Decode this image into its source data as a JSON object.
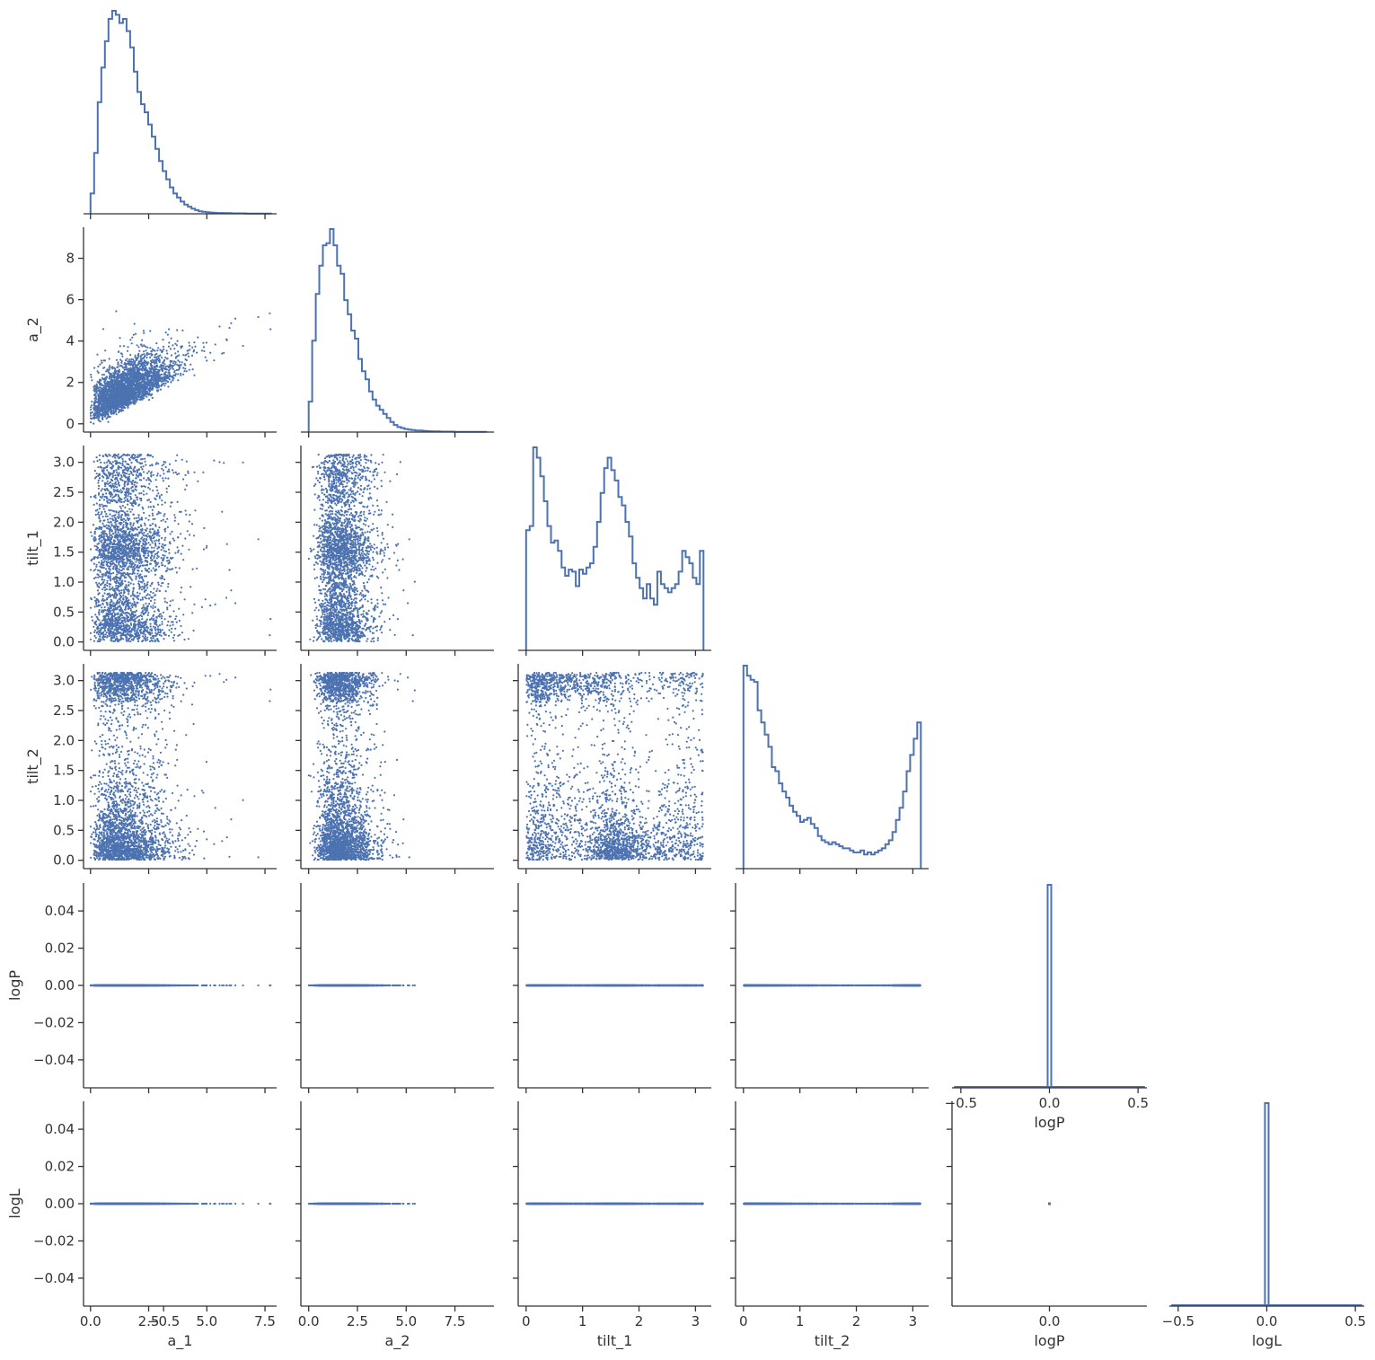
{
  "chart_data": {
    "type": "scatter",
    "variables": [
      "a_1",
      "a_2",
      "tilt_1",
      "tilt_2",
      "logP",
      "logL"
    ],
    "layout": "corner",
    "color": "#4c72b0",
    "axis_ranges": {
      "a_1": [
        -0.3,
        8.0
      ],
      "a_2": [
        -0.4,
        9.5
      ],
      "tilt_1": [
        -0.14,
        3.28
      ],
      "tilt_2": [
        -0.14,
        3.28
      ],
      "logP": [
        -0.055,
        0.055
      ],
      "logL": [
        -0.055,
        0.055
      ]
    },
    "diag_ranges": {
      "logP": [
        -0.55,
        0.55
      ],
      "logL": [
        -0.55,
        0.55
      ]
    },
    "ticks": {
      "a_1": [
        {
          "v": 0.0,
          "t": "0.0"
        },
        {
          "v": 2.5,
          "t": "2.5"
        },
        {
          "v": 5.0,
          "t": "5.0"
        },
        {
          "v": 7.5,
          "t": "7.5"
        }
      ],
      "a_2": [
        {
          "v": 0.0,
          "t": "0.0"
        },
        {
          "v": 2.5,
          "t": "2.5"
        },
        {
          "v": 5.0,
          "t": "5.0"
        },
        {
          "v": 7.5,
          "t": "7.5"
        }
      ],
      "tilt_1": [
        {
          "v": 0,
          "t": "0"
        },
        {
          "v": 1,
          "t": "1"
        },
        {
          "v": 2,
          "t": "2"
        },
        {
          "v": 3,
          "t": "3"
        }
      ],
      "tilt_2": [
        {
          "v": 0,
          "t": "0"
        },
        {
          "v": 1,
          "t": "1"
        },
        {
          "v": 2,
          "t": "2"
        },
        {
          "v": 3,
          "t": "3"
        }
      ],
      "logP": [
        {
          "v": -0.5,
          "t": "−0.5"
        },
        {
          "v": 0.0,
          "t": "0.0"
        },
        {
          "v": 0.5,
          "t": "0.5"
        }
      ],
      "logL": [
        {
          "v": -0.5,
          "t": "−0.5"
        },
        {
          "v": 0.0,
          "t": "0.0"
        },
        {
          "v": 0.5,
          "t": "0.5"
        }
      ]
    },
    "y_ticks": {
      "a_2": [
        {
          "v": 0,
          "t": "0"
        },
        {
          "v": 2,
          "t": "2"
        },
        {
          "v": 4,
          "t": "4"
        },
        {
          "v": 6,
          "t": "6"
        },
        {
          "v": 8,
          "t": "8"
        }
      ],
      "tilt_1": [
        {
          "v": 0.0,
          "t": "0.0"
        },
        {
          "v": 0.5,
          "t": "0.5"
        },
        {
          "v": 1.0,
          "t": "1.0"
        },
        {
          "v": 1.5,
          "t": "1.5"
        },
        {
          "v": 2.0,
          "t": "2.0"
        },
        {
          "v": 2.5,
          "t": "2.5"
        },
        {
          "v": 3.0,
          "t": "3.0"
        }
      ],
      "tilt_2": [
        {
          "v": 0.0,
          "t": "0.0"
        },
        {
          "v": 0.5,
          "t": "0.5"
        },
        {
          "v": 1.0,
          "t": "1.0"
        },
        {
          "v": 1.5,
          "t": "1.5"
        },
        {
          "v": 2.0,
          "t": "2.0"
        },
        {
          "v": 2.5,
          "t": "2.5"
        },
        {
          "v": 3.0,
          "t": "3.0"
        }
      ],
      "logP": [
        {
          "v": -0.04,
          "t": "−0.04"
        },
        {
          "v": -0.02,
          "t": "−0.02"
        },
        {
          "v": 0.0,
          "t": "0.00"
        },
        {
          "v": 0.02,
          "t": "0.02"
        },
        {
          "v": 0.04,
          "t": "0.04"
        }
      ],
      "logL": [
        {
          "v": -0.04,
          "t": "−0.04"
        },
        {
          "v": -0.02,
          "t": "−0.02"
        },
        {
          "v": 0.0,
          "t": "0.00"
        },
        {
          "v": 0.02,
          "t": "0.02"
        },
        {
          "v": 0.04,
          "t": "0.04"
        }
      ]
    },
    "histograms": [
      {
        "variable": "a_1",
        "bin_start": 0.0,
        "bin_width": 0.155,
        "counts": [
          0.1,
          0.3,
          0.55,
          0.72,
          0.85,
          0.96,
          1.0,
          0.98,
          0.94,
          0.96,
          0.9,
          0.82,
          0.7,
          0.6,
          0.54,
          0.5,
          0.44,
          0.38,
          0.32,
          0.26,
          0.21,
          0.17,
          0.13,
          0.1,
          0.08,
          0.06,
          0.045,
          0.035,
          0.025,
          0.018,
          0.012,
          0.01,
          0.008,
          0.006,
          0.005,
          0.004,
          0.004,
          0.003,
          0.003,
          0.002,
          0.002,
          0.002,
          0.002,
          0.001,
          0.001,
          0.001,
          0.001,
          0.001,
          0.001,
          0.001
        ]
      },
      {
        "variable": "a_2",
        "bin_start": 0.0,
        "bin_width": 0.182,
        "counts": [
          0.15,
          0.45,
          0.68,
          0.82,
          0.92,
          0.93,
          1.0,
          0.92,
          0.82,
          0.78,
          0.65,
          0.58,
          0.5,
          0.46,
          0.36,
          0.3,
          0.26,
          0.2,
          0.16,
          0.13,
          0.11,
          0.09,
          0.07,
          0.05,
          0.035,
          0.025,
          0.02,
          0.015,
          0.012,
          0.01,
          0.008,
          0.008,
          0.006,
          0.005,
          0.004,
          0.003,
          0.003,
          0.002,
          0.002,
          0.002,
          0.002,
          0.001,
          0.001,
          0.001,
          0.001,
          0.001,
          0.001,
          0.001,
          0.001,
          0.001
        ]
      },
      {
        "variable": "tilt_1",
        "bin_start": 0.0,
        "bin_width": 0.06283,
        "counts": [
          0.58,
          0.6,
          0.98,
          0.93,
          0.84,
          0.72,
          0.6,
          0.52,
          0.53,
          0.48,
          0.4,
          0.36,
          0.39,
          0.38,
          0.31,
          0.39,
          0.37,
          0.4,
          0.42,
          0.5,
          0.62,
          0.76,
          0.88,
          0.93,
          0.87,
          0.82,
          0.74,
          0.7,
          0.62,
          0.55,
          0.42,
          0.35,
          0.3,
          0.25,
          0.32,
          0.25,
          0.22,
          0.38,
          0.32,
          0.3,
          0.28,
          0.3,
          0.32,
          0.38,
          0.48,
          0.45,
          0.42,
          0.35,
          0.32,
          0.48
        ]
      },
      {
        "variable": "tilt_2",
        "bin_start": 0.0,
        "bin_width": 0.06283,
        "counts": [
          1.0,
          0.95,
          0.93,
          0.92,
          0.78,
          0.72,
          0.66,
          0.6,
          0.5,
          0.48,
          0.42,
          0.38,
          0.35,
          0.31,
          0.28,
          0.26,
          0.23,
          0.24,
          0.25,
          0.22,
          0.2,
          0.16,
          0.14,
          0.13,
          0.12,
          0.13,
          0.12,
          0.11,
          0.1,
          0.1,
          0.09,
          0.08,
          0.08,
          0.09,
          0.07,
          0.08,
          0.07,
          0.08,
          0.09,
          0.1,
          0.12,
          0.14,
          0.18,
          0.24,
          0.3,
          0.38,
          0.48,
          0.56,
          0.64,
          0.72
        ]
      },
      {
        "variable": "logP",
        "bin_start": -0.01,
        "bin_width": 0.02,
        "counts": [
          1.0
        ]
      },
      {
        "variable": "logL",
        "bin_start": -0.01,
        "bin_width": 0.02,
        "counts": [
          1.0
        ]
      }
    ]
  }
}
